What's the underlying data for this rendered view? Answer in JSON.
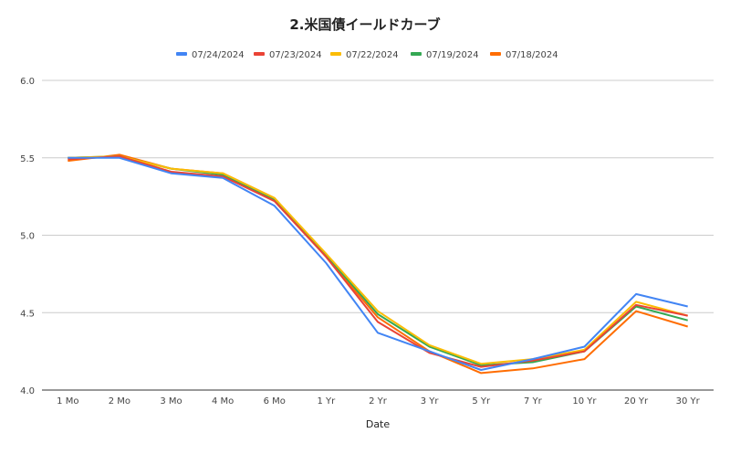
{
  "chart_data": {
    "type": "line",
    "title": "2.米国債イールドカーブ",
    "xlabel": "Date",
    "ylabel": "",
    "categories": [
      "1 Mo",
      "2 Mo",
      "3 Mo",
      "4 Mo",
      "6 Mo",
      "1 Yr",
      "2 Yr",
      "3 Yr",
      "5 Yr",
      "7 Yr",
      "10 Yr",
      "20 Yr",
      "30 Yr"
    ],
    "ylim": [
      4.0,
      6.0
    ],
    "yticks": [
      "4.0",
      "4.5",
      "5.0",
      "5.5",
      "6.0"
    ],
    "grid": true,
    "legend_position": "top",
    "series": [
      {
        "name": "07/24/2024",
        "color": "#4285f4",
        "values": [
          5.5,
          5.5,
          5.4,
          5.37,
          5.19,
          4.82,
          4.37,
          4.25,
          4.13,
          4.2,
          4.28,
          4.62,
          4.54
        ]
      },
      {
        "name": "07/23/2024",
        "color": "#ea4335",
        "values": [
          5.49,
          5.51,
          5.41,
          5.38,
          5.22,
          4.86,
          4.44,
          4.24,
          4.15,
          4.19,
          4.25,
          4.55,
          4.48
        ]
      },
      {
        "name": "07/22/2024",
        "color": "#fbbc04",
        "values": [
          5.5,
          5.51,
          5.43,
          5.4,
          5.24,
          4.88,
          4.51,
          4.29,
          4.17,
          4.2,
          4.26,
          4.57,
          4.48
        ]
      },
      {
        "name": "07/19/2024",
        "color": "#34a853",
        "values": [
          5.5,
          5.51,
          5.43,
          5.39,
          5.23,
          4.87,
          4.49,
          4.28,
          4.16,
          4.18,
          4.25,
          4.54,
          4.45
        ]
      },
      {
        "name": "07/18/2024",
        "color": "#ff6d01",
        "values": [
          5.48,
          5.52,
          5.43,
          5.4,
          5.24,
          4.86,
          4.47,
          4.25,
          4.11,
          4.14,
          4.2,
          4.51,
          4.41
        ]
      }
    ]
  }
}
